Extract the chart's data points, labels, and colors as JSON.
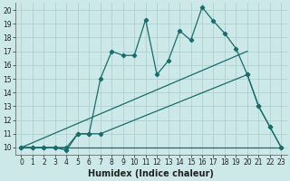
{
  "xlabel": "Humidex (Indice chaleur)",
  "bg_color": "#cce8e8",
  "line_color": "#1a6b6b",
  "grid_color": "#aacccc",
  "xlim": [
    -0.5,
    23.5
  ],
  "ylim": [
    9.5,
    20.5
  ],
  "xticks": [
    0,
    1,
    2,
    3,
    4,
    5,
    6,
    7,
    8,
    9,
    10,
    11,
    12,
    13,
    14,
    15,
    16,
    17,
    18,
    19,
    20,
    21,
    22,
    23
  ],
  "yticks": [
    10,
    11,
    12,
    13,
    14,
    15,
    16,
    17,
    18,
    19,
    20
  ],
  "series1_x": [
    0,
    1,
    2,
    3,
    4,
    5,
    6,
    7,
    8,
    9,
    10,
    11,
    12,
    13,
    14,
    15,
    16,
    17,
    18,
    19,
    20,
    21,
    22,
    23
  ],
  "series1_y": [
    10,
    10,
    10,
    10,
    9.8,
    11,
    11,
    15,
    17,
    16.7,
    16.7,
    19.3,
    15.3,
    16.3,
    18.5,
    17.8,
    20.2,
    19.2,
    18.3,
    17.2,
    15.3,
    13,
    11.5,
    10
  ],
  "series2_x": [
    0,
    1,
    2,
    3,
    4,
    5,
    6,
    7,
    20,
    21,
    22,
    23
  ],
  "series2_y": [
    10,
    10,
    10,
    10,
    10,
    11,
    11,
    11,
    15.3,
    13,
    11.5,
    10
  ],
  "series3_x": [
    0,
    20
  ],
  "series3_y": [
    10,
    17
  ],
  "series4_x": [
    0,
    23
  ],
  "series4_y": [
    10,
    10
  ],
  "tick_fontsize": 5.5,
  "label_fontsize": 7
}
